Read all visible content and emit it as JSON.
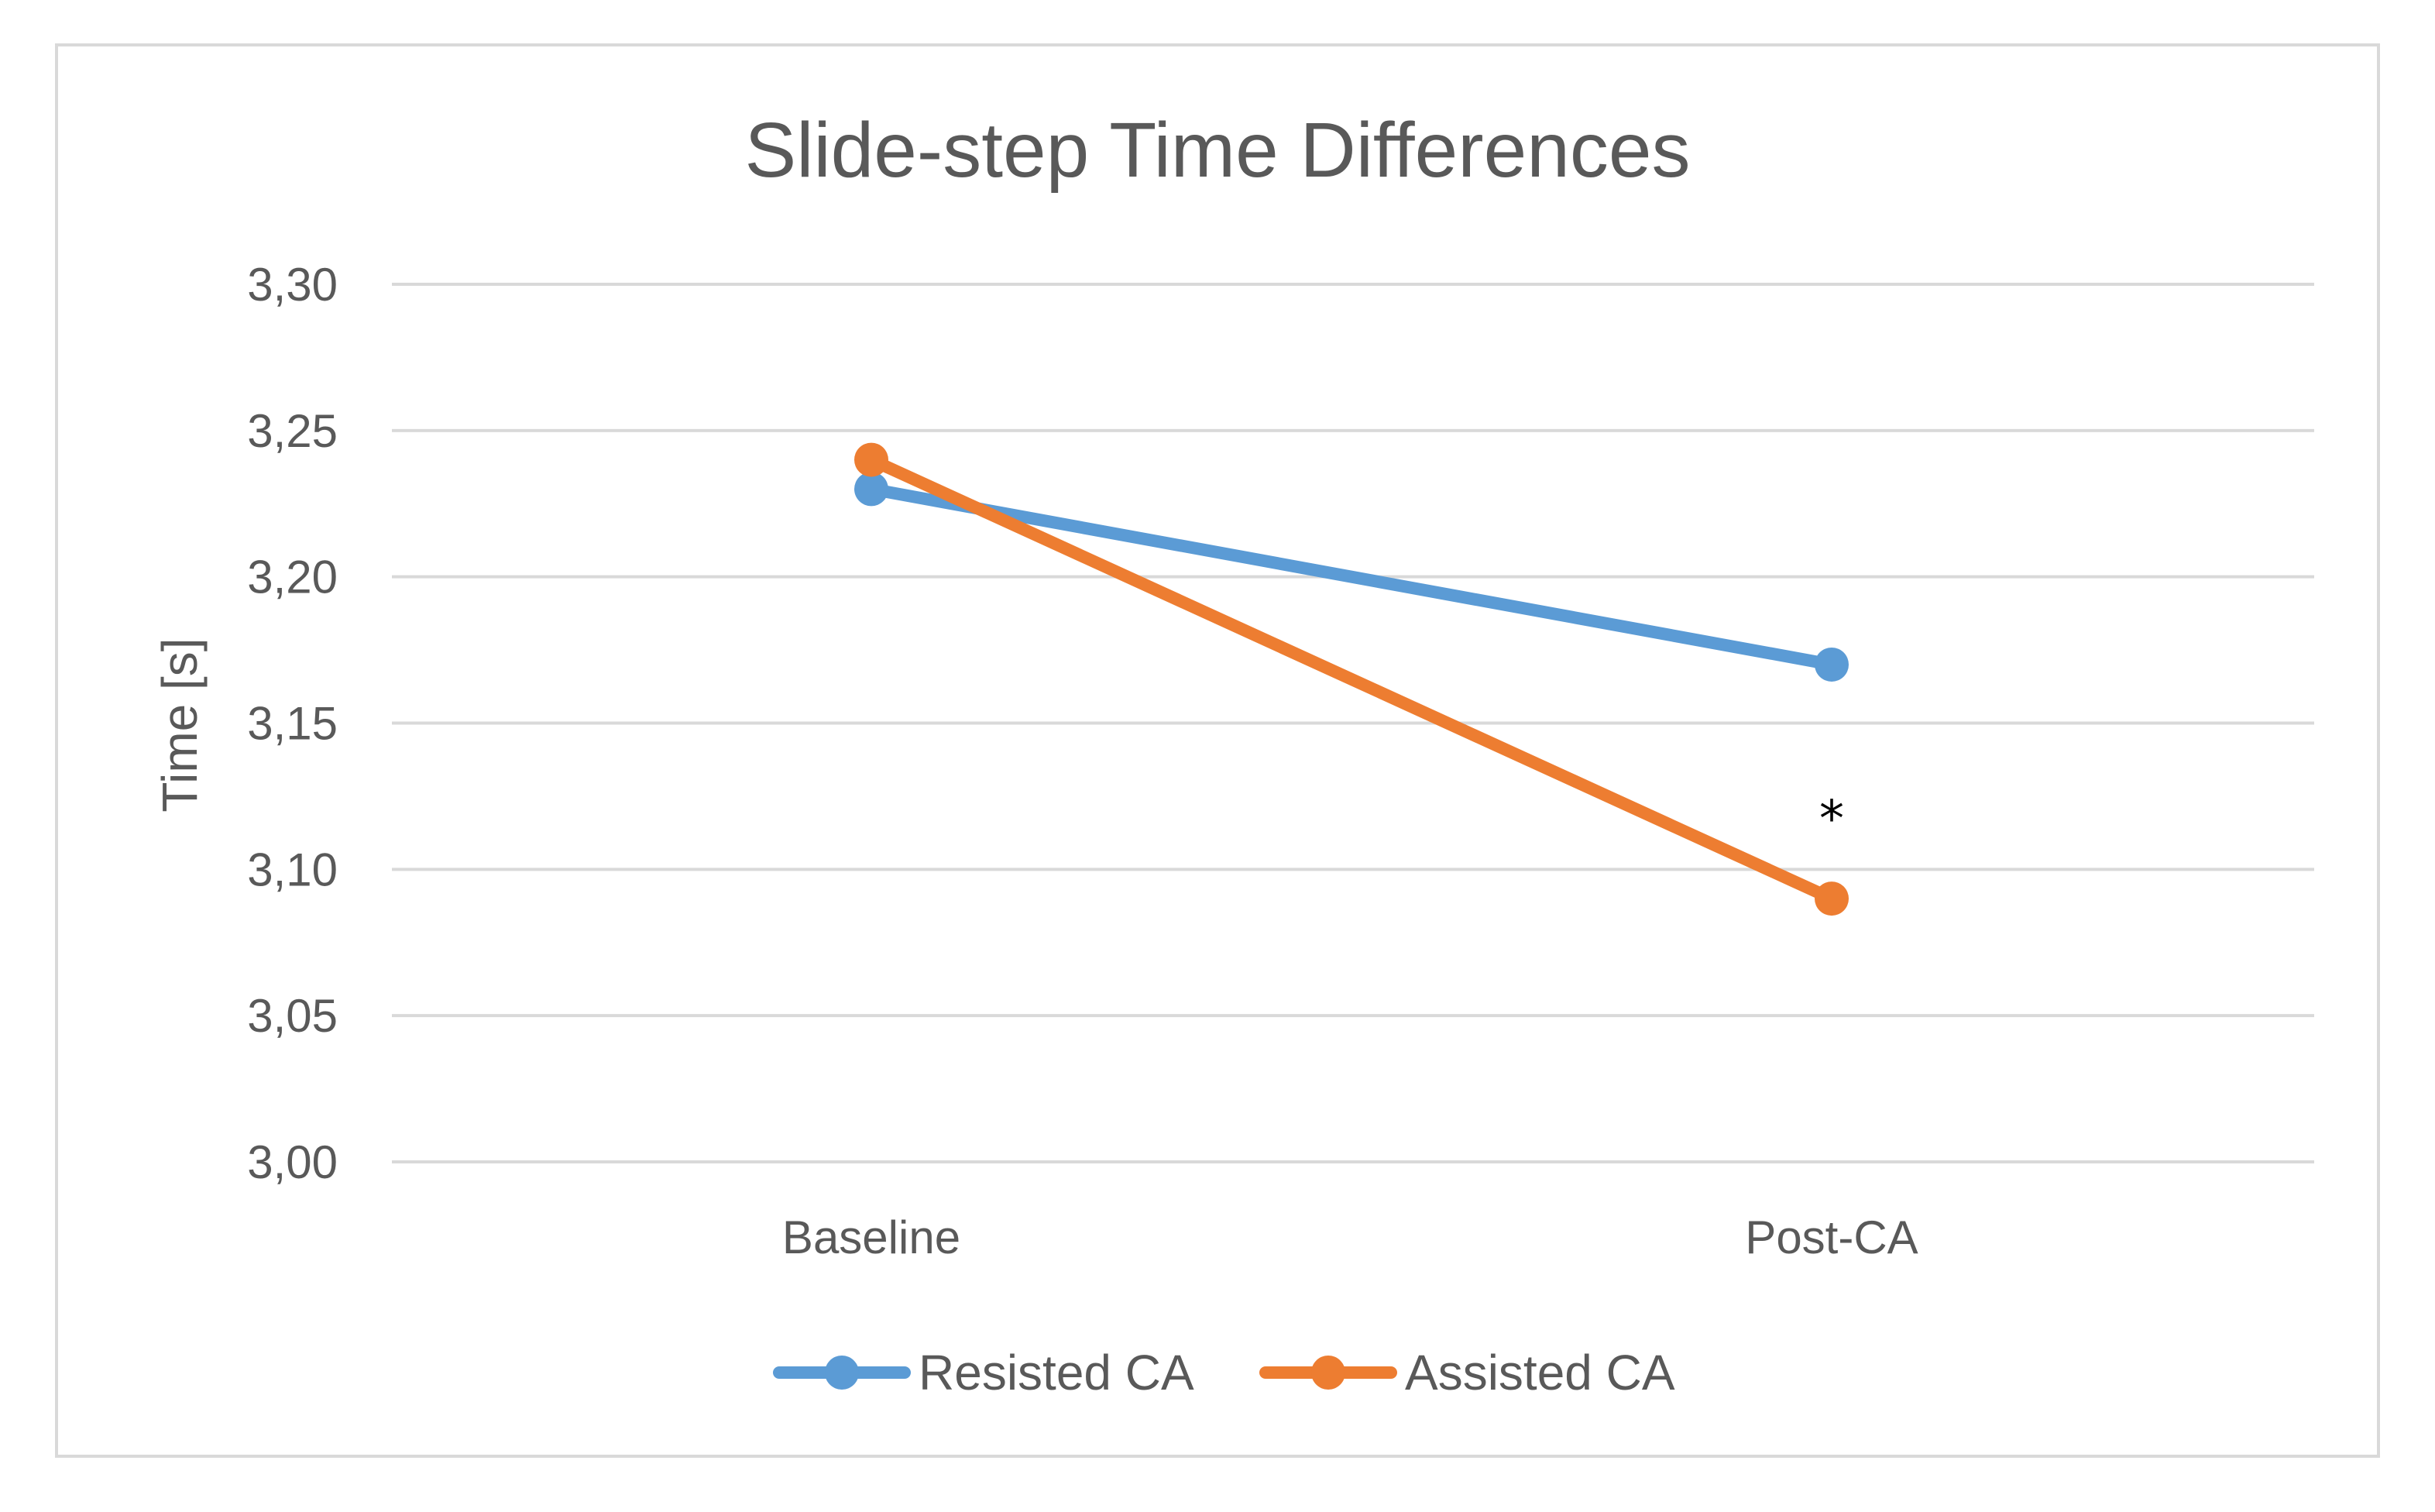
{
  "chart_data": {
    "type": "line",
    "title": "Slide-step Time Differences",
    "xlabel": "",
    "ylabel": "Time [s]",
    "categories": [
      "Baseline",
      "Post-CA"
    ],
    "series": [
      {
        "name": "Resisted CA",
        "values": [
          3.23,
          3.17
        ],
        "color": "#5B9BD5"
      },
      {
        "name": "Assisted CA",
        "values": [
          3.24,
          3.09
        ],
        "color": "#ED7D31"
      }
    ],
    "ylim": [
      3.0,
      3.3
    ],
    "yticks": [
      "3,00",
      "3,05",
      "3,10",
      "3,15",
      "3,20",
      "3,25",
      "3,30"
    ],
    "grid": true,
    "legend": "bottom",
    "annotations": [
      {
        "text": "*",
        "category": "Post-CA",
        "value": 3.12
      }
    ],
    "colors": {
      "grid": "#d9d9d9",
      "border": "#d9d9d9",
      "text": "#595959"
    }
  }
}
